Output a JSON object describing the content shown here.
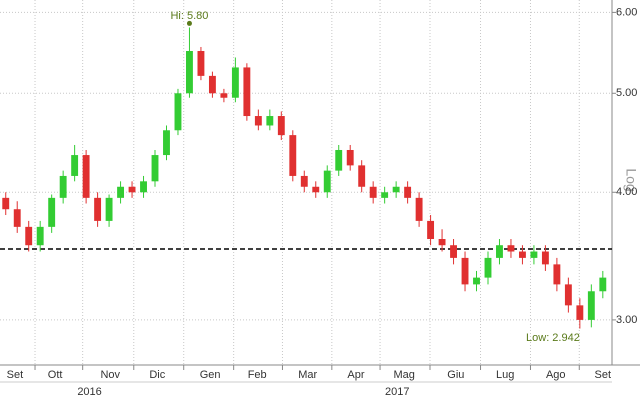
{
  "chart_data": {
    "type": "candlestick",
    "log_scale": true,
    "grid": true,
    "up_color": "#33cc33",
    "down_color": "#e03030",
    "open": [
      3.95,
      3.85,
      3.7,
      3.55,
      3.7,
      3.95,
      4.15,
      4.35,
      3.95,
      3.75,
      3.95,
      4.05,
      4.0,
      4.1,
      4.35,
      4.6,
      5.0,
      5.5,
      5.2,
      5.0,
      4.95,
      5.3,
      4.75,
      4.65,
      4.75,
      4.55,
      4.15,
      4.05,
      4.0,
      4.2,
      4.4,
      4.25,
      4.05,
      3.95,
      4.0,
      4.05,
      3.95,
      3.75,
      3.6,
      3.55,
      3.45,
      3.25,
      3.3,
      3.45,
      3.55,
      3.5,
      3.45,
      3.5,
      3.4,
      3.25,
      3.1,
      3.0,
      3.2
    ],
    "high": [
      4.0,
      3.92,
      3.75,
      3.75,
      3.98,
      4.2,
      4.45,
      4.4,
      4.0,
      3.98,
      4.1,
      4.1,
      4.15,
      4.4,
      4.65,
      5.05,
      5.8,
      5.55,
      5.25,
      5.05,
      5.42,
      5.35,
      4.82,
      4.82,
      4.8,
      4.6,
      4.2,
      4.1,
      4.25,
      4.45,
      4.45,
      4.3,
      4.1,
      4.05,
      4.1,
      4.1,
      4.0,
      3.8,
      3.68,
      3.6,
      3.5,
      3.35,
      3.5,
      3.6,
      3.6,
      3.55,
      3.55,
      3.55,
      3.45,
      3.3,
      3.15,
      3.25,
      3.35
    ],
    "low": [
      3.8,
      3.65,
      3.5,
      3.5,
      3.65,
      3.9,
      4.1,
      3.9,
      3.7,
      3.7,
      3.9,
      3.95,
      3.95,
      4.05,
      4.3,
      4.55,
      4.95,
      5.15,
      4.95,
      4.9,
      4.9,
      4.7,
      4.6,
      4.6,
      4.5,
      4.1,
      4.0,
      3.95,
      3.95,
      4.15,
      4.2,
      4.0,
      3.9,
      3.9,
      3.95,
      3.9,
      3.7,
      3.55,
      3.5,
      3.4,
      3.2,
      3.2,
      3.25,
      3.4,
      3.45,
      3.4,
      3.4,
      3.35,
      3.2,
      3.05,
      2.942,
      2.95,
      3.15
    ],
    "close": [
      3.85,
      3.7,
      3.55,
      3.7,
      3.95,
      4.15,
      4.35,
      3.95,
      3.75,
      3.95,
      4.05,
      4.0,
      4.1,
      4.35,
      4.6,
      5.0,
      5.5,
      5.2,
      5.0,
      4.95,
      5.3,
      4.75,
      4.65,
      4.75,
      4.55,
      4.15,
      4.05,
      4.0,
      4.2,
      4.4,
      4.25,
      4.05,
      3.95,
      4.0,
      4.05,
      3.95,
      3.75,
      3.6,
      3.55,
      3.45,
      3.25,
      3.3,
      3.45,
      3.55,
      3.5,
      3.45,
      3.5,
      3.4,
      3.25,
      3.1,
      3.0,
      3.2,
      3.3
    ],
    "xlim": [
      0,
      53.3
    ],
    "xticks": [
      {
        "value": 1.3,
        "label": "Set"
      },
      {
        "value": 4.8,
        "label": "Ott"
      },
      {
        "value": 9.6,
        "label": "Nov"
      },
      {
        "value": 13.7,
        "label": "Dic"
      },
      {
        "value": 18.3,
        "label": "Gen"
      },
      {
        "value": 22.4,
        "label": "Feb"
      },
      {
        "value": 26.8,
        "label": "Mar"
      },
      {
        "value": 31,
        "label": "Apr"
      },
      {
        "value": 35.2,
        "label": "Mag"
      },
      {
        "value": 39.7,
        "label": "Giu"
      },
      {
        "value": 44,
        "label": "Lug"
      },
      {
        "value": 48.4,
        "label": "Ago"
      },
      {
        "value": 52.5,
        "label": "Set"
      }
    ],
    "year_labels": [
      {
        "value": 7.8,
        "label": "2016"
      },
      {
        "value": 34.6,
        "label": "2017"
      }
    ],
    "ylim": [
      2.71,
      6.17
    ],
    "yticks": [
      {
        "value": 3,
        "label": "3.00"
      },
      {
        "value": 4,
        "label": "4.00"
      },
      {
        "value": 5,
        "label": "5.00"
      },
      {
        "value": 6,
        "label": "6.00"
      }
    ],
    "reference_line": 3.52,
    "axis_scale_label": "Log",
    "annotations": [
      "Hi: 5.80",
      "Low: 2.942"
    ]
  }
}
